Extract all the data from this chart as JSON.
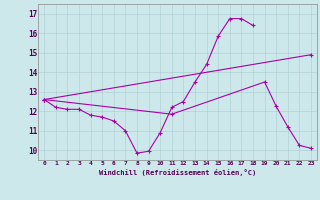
{
  "xlabel": "Windchill (Refroidissement éolien,°C)",
  "background_color": "#cce8ea",
  "line_color": "#aa00aa",
  "xlim": [
    -0.5,
    23.5
  ],
  "ylim": [
    9.5,
    17.5
  ],
  "yticks": [
    10,
    11,
    12,
    13,
    14,
    15,
    16,
    17
  ],
  "xticks": [
    0,
    1,
    2,
    3,
    4,
    5,
    6,
    7,
    8,
    9,
    10,
    11,
    12,
    13,
    14,
    15,
    16,
    17,
    18,
    19,
    20,
    21,
    22,
    23
  ],
  "grid_color": "#aaccd0",
  "series": [
    {
      "x": [
        0,
        1,
        2,
        3,
        4,
        5,
        6,
        7,
        8,
        9,
        10,
        11,
        12,
        13,
        14,
        15,
        16,
        17,
        18
      ],
      "y": [
        12.6,
        12.2,
        12.1,
        12.1,
        11.8,
        11.7,
        11.5,
        11.0,
        9.85,
        9.95,
        10.9,
        12.2,
        12.5,
        13.5,
        14.4,
        15.85,
        16.75,
        16.75,
        16.4
      ]
    },
    {
      "x": [
        0,
        23
      ],
      "y": [
        12.6,
        14.9
      ]
    },
    {
      "x": [
        0,
        11,
        19,
        20,
        21,
        22,
        23
      ],
      "y": [
        12.6,
        11.85,
        13.5,
        12.25,
        11.2,
        10.25,
        10.1
      ]
    }
  ]
}
